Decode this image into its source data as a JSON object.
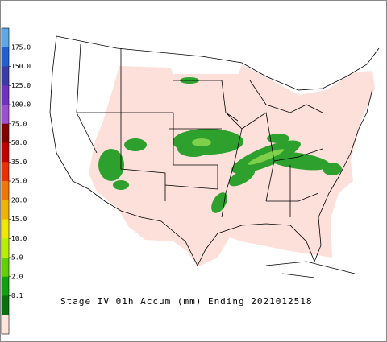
{
  "legend": {
    "labels": [
      "175.0",
      "150.0",
      "125.0",
      "100.0",
      "75.0",
      "50.0",
      "35.0",
      "25.0",
      "20.0",
      "15.0",
      "10.0",
      "5.0",
      "2.0",
      "0.1"
    ],
    "colors": [
      "#5fa8e8",
      "#2060d0",
      "#3a3aa8",
      "#7030c0",
      "#9a50d0",
      "#800000",
      "#c00000",
      "#e83000",
      "#f07800",
      "#f0b400",
      "#f0e800",
      "#b8f000",
      "#60d000",
      "#10a010",
      "#0a7010",
      "#fde4dc"
    ]
  },
  "caption": "Stage IV 01h Accum (mm) Ending 2021012518"
}
